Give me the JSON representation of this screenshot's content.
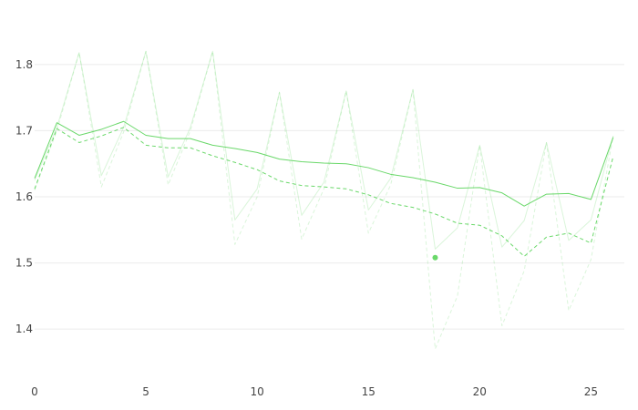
{
  "chart_data": {
    "type": "line",
    "title": "",
    "xlabel": "",
    "ylabel": "",
    "xlim": [
      0,
      26.5
    ],
    "ylim": [
      1.33,
      1.87
    ],
    "xticks": [
      0,
      5,
      10,
      15,
      20,
      25
    ],
    "yticks": [
      1.4,
      1.5,
      1.6,
      1.7,
      1.8
    ],
    "xtick_labels": [
      "0",
      "5",
      "10",
      "15",
      "20",
      "25"
    ],
    "ytick_labels": [
      "1.4",
      "1.5",
      "1.6",
      "1.7",
      "1.8"
    ],
    "grid": "horizontal",
    "legend": "none",
    "x": [
      0,
      1,
      2,
      3,
      4,
      5,
      6,
      7,
      8,
      9,
      10,
      11,
      12,
      13,
      14,
      15,
      16,
      17,
      18,
      19,
      20,
      21,
      22,
      23,
      24,
      25,
      26
    ],
    "series": [
      {
        "style": "solid",
        "color": "#6ad86a",
        "opacity": 1,
        "values": [
          1.628,
          1.712,
          1.693,
          1.702,
          1.714,
          1.693,
          1.688,
          1.688,
          1.678,
          1.673,
          1.667,
          1.657,
          1.653,
          1.651,
          1.65,
          1.644,
          1.634,
          1.629,
          1.622,
          1.613,
          1.614,
          1.606,
          1.586,
          1.604,
          1.605,
          1.596,
          1.69
        ]
      },
      {
        "style": "dashed",
        "color": "#6ad86a",
        "opacity": 1,
        "values": [
          1.612,
          1.703,
          1.682,
          1.692,
          1.705,
          1.678,
          1.674,
          1.674,
          1.662,
          1.652,
          1.641,
          1.624,
          1.617,
          1.615,
          1.612,
          1.603,
          1.59,
          1.584,
          1.574,
          1.56,
          1.557,
          1.541,
          1.51,
          1.539,
          1.545,
          1.53,
          1.661
        ]
      },
      {
        "style": "solid",
        "color": "#6ad86a",
        "opacity": 0.25,
        "values": [
          1.625,
          1.705,
          1.818,
          1.632,
          1.705,
          1.82,
          1.63,
          1.705,
          1.82,
          1.565,
          1.612,
          1.758,
          1.572,
          1.622,
          1.76,
          1.58,
          1.628,
          1.762,
          1.521,
          1.553,
          1.678,
          1.524,
          1.564,
          1.682,
          1.534,
          1.565,
          1.692
        ]
      },
      {
        "style": "dashed",
        "color": "#6ad86a",
        "opacity": 0.25,
        "values": [
          1.61,
          1.7,
          1.818,
          1.615,
          1.698,
          1.82,
          1.618,
          1.7,
          1.82,
          1.528,
          1.6,
          1.758,
          1.536,
          1.612,
          1.76,
          1.545,
          1.618,
          1.762,
          1.37,
          1.45,
          1.678,
          1.405,
          1.488,
          1.682,
          1.428,
          1.505,
          1.692
        ]
      }
    ],
    "markers": [
      {
        "x": 18,
        "y": 1.508,
        "color": "#6ad86a"
      }
    ]
  }
}
